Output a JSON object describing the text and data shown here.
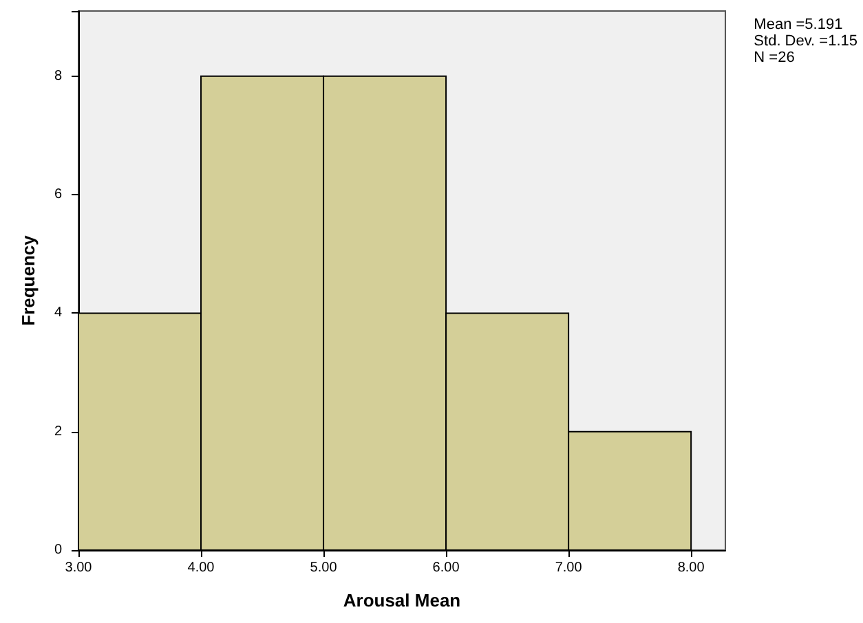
{
  "chart_data": {
    "type": "histogram",
    "xlabel": "Arousal Mean",
    "ylabel": "Frequency",
    "bins": [
      3,
      4,
      5,
      6,
      7,
      8
    ],
    "values": [
      4,
      8,
      8,
      4,
      2
    ],
    "color": "#d4cf98",
    "xlim": [
      3,
      8.28
    ],
    "ylim": [
      0,
      9.1
    ],
    "xticks": [
      {
        "value": 3,
        "label": "3.00"
      },
      {
        "value": 4,
        "label": "4.00"
      },
      {
        "value": 5,
        "label": "5.00"
      },
      {
        "value": 6,
        "label": "6.00"
      },
      {
        "value": 7,
        "label": "7.00"
      },
      {
        "value": 8,
        "label": "8.00"
      }
    ],
    "yticks": [
      0,
      2,
      4,
      6,
      8
    ],
    "annotations": [
      "Mean =5.191",
      "Std. Dev. =1.15",
      "N =26"
    ],
    "grid": false
  }
}
